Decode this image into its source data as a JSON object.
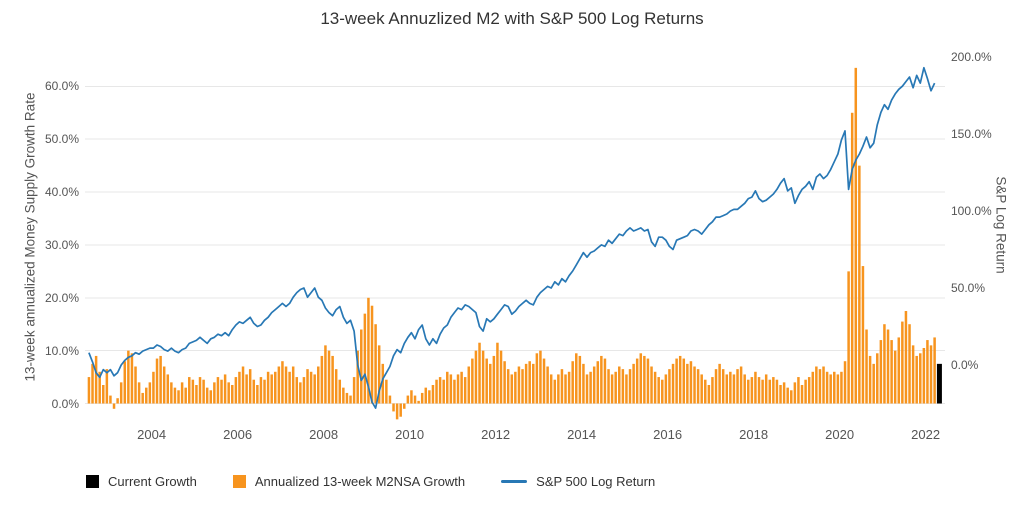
{
  "chart_data": {
    "type": "mixed",
    "title": "13-week Annuzlized M2 with S&P 500 Log Returns",
    "legend_position": "bottom-left",
    "grid": "horizontal-left-axis",
    "x_axis": {
      "range": [
        2002.45,
        2022.45
      ],
      "tick_values": [
        2004,
        2006,
        2008,
        2010,
        2012,
        2014,
        2016,
        2018,
        2020,
        2022
      ],
      "tick_labels": [
        "2004",
        "2006",
        "2008",
        "2010",
        "2012",
        "2014",
        "2016",
        "2018",
        "2020",
        "2022"
      ]
    },
    "y_left": {
      "label": "13-week annualized Money Supply Growth Rate",
      "range": [
        -3.5,
        66.5
      ],
      "tick_values": [
        0,
        10,
        20,
        30,
        40,
        50,
        60
      ],
      "tick_labels": [
        "0.0%",
        "10.0%",
        "20.0%",
        "30.0%",
        "40.0%",
        "50.0%",
        "60.0%"
      ]
    },
    "y_right": {
      "label": "S&P Log Return",
      "range": [
        -37,
        203.2
      ],
      "tick_values": [
        0,
        50,
        100,
        150,
        200
      ],
      "tick_labels": [
        "0.0%",
        "50.0%",
        "100.0%",
        "150.0%",
        "200.0%"
      ]
    },
    "x_start": 2002.5417,
    "x_step": 0.0833333,
    "series": [
      {
        "name": "Current Growth",
        "type": "bar",
        "axis": "left",
        "color": "#000000",
        "x": [
          2022.32
        ],
        "values": [
          7.5
        ]
      },
      {
        "name": "Annualized 13-week M2NSA Growth",
        "type": "bar",
        "axis": "left",
        "color": "#F7941E",
        "values": [
          5,
          7.5,
          9,
          6,
          3.5,
          6.5,
          1.5,
          -1,
          1,
          4,
          8,
          10,
          9.5,
          7,
          4,
          2,
          3,
          4,
          6,
          8.5,
          9,
          7,
          5.5,
          4,
          3,
          2.5,
          4,
          3,
          5,
          4.5,
          3.5,
          5,
          4.5,
          3,
          2.5,
          4,
          5,
          4.5,
          5.5,
          4,
          3.5,
          5,
          6,
          7,
          5.5,
          6.5,
          4.5,
          3.5,
          5,
          4.5,
          6,
          5.5,
          6,
          7,
          8,
          7,
          6,
          7,
          5,
          4,
          5,
          6.5,
          6,
          5.5,
          7,
          9,
          11,
          10,
          9,
          6.5,
          4.5,
          3,
          2,
          1.5,
          5,
          10,
          14,
          17,
          20,
          18.5,
          15,
          11,
          7.5,
          4.5,
          1.5,
          -1.5,
          -3,
          -2.5,
          -1,
          1.5,
          2.5,
          1.5,
          0.5,
          2,
          3,
          2.5,
          3.5,
          4.5,
          5,
          4.5,
          6,
          5.5,
          4.5,
          5.5,
          6,
          5,
          7,
          8.5,
          10,
          11.5,
          10,
          8.5,
          7.5,
          9,
          11.5,
          10,
          8,
          6.5,
          5.5,
          6,
          7,
          6.5,
          7.5,
          8,
          7.5,
          9.5,
          10,
          8.5,
          7,
          5.5,
          4.5,
          5.5,
          6.5,
          5.5,
          6,
          8,
          9.5,
          9,
          7.5,
          5.5,
          6,
          7,
          8,
          9,
          8.5,
          6.5,
          5.5,
          6,
          7,
          6.5,
          5.5,
          6.5,
          7.5,
          8.5,
          9.5,
          9,
          8.5,
          7,
          6,
          5,
          4.5,
          5.5,
          6.5,
          7.5,
          8.5,
          9,
          8.5,
          7.5,
          8,
          7,
          6.5,
          5.5,
          4.5,
          3.5,
          5,
          6.5,
          7.5,
          6.5,
          5.5,
          6,
          5.5,
          6.5,
          7,
          5.5,
          4.5,
          5,
          6,
          5,
          4.5,
          5.5,
          4.5,
          5,
          4.5,
          3.5,
          4,
          3,
          2.5,
          4,
          5,
          3.5,
          4.5,
          5,
          6,
          7,
          6.5,
          7,
          6,
          5.5,
          6,
          5.5,
          6,
          8,
          25,
          55,
          63.5,
          45,
          26,
          14,
          9,
          7.5,
          9.5,
          12,
          15,
          14,
          12,
          10,
          12.5,
          15.5,
          17.5,
          15,
          11,
          9,
          9.5,
          10.5,
          12,
          11,
          12.5
        ]
      },
      {
        "name": "S&P 500 Log Return",
        "type": "line",
        "axis": "right",
        "color": "#2878B5",
        "values": [
          8,
          2,
          -5,
          -8,
          -3,
          -5,
          -3,
          -7,
          -5,
          0,
          3,
          5,
          6,
          8,
          7,
          9,
          10,
          11,
          11,
          13,
          12,
          10,
          9,
          11,
          9,
          8,
          10,
          11,
          14,
          15,
          16,
          18,
          16,
          14,
          17,
          18,
          20,
          19,
          21,
          19,
          23,
          26,
          28,
          27,
          29,
          31,
          27,
          25,
          26,
          29,
          31,
          34,
          36,
          38,
          40,
          38,
          40,
          44,
          47,
          49,
          50,
          44,
          47,
          50,
          44,
          42,
          37,
          34,
          32,
          36,
          38,
          31,
          27,
          29,
          22,
          0,
          -10,
          -6,
          -14,
          -24,
          -28,
          -17,
          -9,
          -5,
          -1,
          6,
          10,
          8,
          14,
          18,
          21,
          17,
          23,
          26,
          17,
          13,
          17,
          14,
          20,
          24,
          26,
          31,
          34,
          37,
          36,
          39,
          38,
          36,
          34,
          25,
          22,
          30,
          28,
          30,
          33,
          36,
          39,
          38,
          33,
          35,
          38,
          40,
          42,
          40,
          39,
          44,
          47,
          49,
          51,
          50,
          54,
          52,
          56,
          54,
          58,
          61,
          65,
          69,
          73,
          70,
          73,
          74,
          76,
          78,
          77,
          81,
          79,
          82,
          85,
          84,
          87,
          89,
          87,
          88,
          89,
          87,
          88,
          80,
          77,
          83,
          83,
          81,
          77,
          75,
          81,
          82,
          83,
          84,
          87,
          88,
          87,
          85,
          88,
          91,
          93,
          96,
          96,
          97,
          98,
          100,
          101,
          101,
          103,
          105,
          108,
          109,
          113,
          108,
          106,
          107,
          109,
          111,
          114,
          118,
          121,
          113,
          115,
          105,
          110,
          114,
          116,
          119,
          114,
          122,
          124,
          121,
          123,
          127,
          132,
          137,
          146,
          152,
          114,
          127,
          133,
          137,
          142,
          148,
          141,
          144,
          156,
          164,
          169,
          166,
          172,
          176,
          179,
          181,
          184,
          187,
          180,
          188,
          183,
          193,
          186,
          178,
          183
        ]
      }
    ]
  }
}
